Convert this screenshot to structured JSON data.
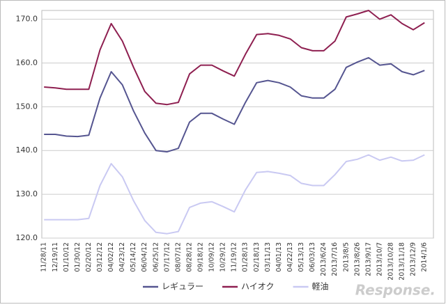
{
  "chart_data": {
    "type": "line",
    "categories": [
      "11/28/11",
      "12/19/11",
      "01/10/12",
      "01/30/12",
      "02/20/12",
      "03/12/12",
      "04/02/12",
      "04/23/12",
      "05/14/12",
      "06/04/12",
      "06/25/12",
      "07/17/12",
      "08/07/12",
      "08/28/12",
      "09/18/12",
      "10/09/12",
      "10/29/12",
      "11/19/12",
      "01/28/13",
      "02/18/13",
      "03/11/13",
      "04/01/13",
      "04/22/13",
      "05/13/13",
      "06/03/13",
      "2013/6/24",
      "2013/7/16",
      "2013/8/5",
      "2013/8/26",
      "2013/9/17",
      "2013/10/7",
      "2013/10/28",
      "2013/11/18",
      "2013/12/9",
      "2014/1/6"
    ],
    "series": [
      {
        "name": "レギュラー",
        "color": "#555590",
        "values": [
          143.7,
          143.7,
          143.3,
          143.2,
          143.5,
          152,
          158,
          155,
          149,
          144,
          140,
          139.7,
          140.5,
          146.5,
          148.5,
          148.5,
          147.2,
          146,
          151,
          155.5,
          156,
          155.5,
          154.5,
          152.5,
          152,
          152,
          154,
          159,
          160.2,
          161.2,
          159.5,
          159.8,
          158,
          157.3,
          158.3
        ]
      },
      {
        "name": "ハイオク",
        "color": "#8e1f50",
        "values": [
          154.5,
          154.3,
          154,
          154,
          154,
          163,
          169,
          165,
          159,
          153.5,
          150.8,
          150.5,
          151,
          157.5,
          159.5,
          159.5,
          158.2,
          157,
          162,
          166.5,
          166.7,
          166.3,
          165.5,
          163.5,
          162.8,
          162.8,
          165,
          170.5,
          171.2,
          172,
          170,
          171,
          169,
          167.6,
          169.2
        ]
      },
      {
        "name": "軽油",
        "color": "#c9c9f2",
        "values": [
          124.2,
          124.2,
          124.2,
          124.2,
          124.5,
          132,
          137,
          134,
          128.5,
          124,
          121.3,
          121,
          121.5,
          127,
          128,
          128.3,
          127.2,
          126,
          131,
          135,
          135.2,
          134.8,
          134.3,
          132.5,
          132,
          132,
          134.5,
          137.5,
          138,
          139,
          137.8,
          138.5,
          137.6,
          137.8,
          139
        ]
      }
    ],
    "ylim": [
      120,
      172
    ],
    "yticks": [
      {
        "value": 120,
        "label": "120.0"
      },
      {
        "value": 130,
        "label": "130.0"
      },
      {
        "value": 140,
        "label": "140.0"
      },
      {
        "value": 150,
        "label": "150.0"
      },
      {
        "value": 160,
        "label": "160.0"
      },
      {
        "value": 170,
        "label": "170.0"
      }
    ],
    "grid": true,
    "legend": "bottom",
    "watermark": "Response."
  }
}
